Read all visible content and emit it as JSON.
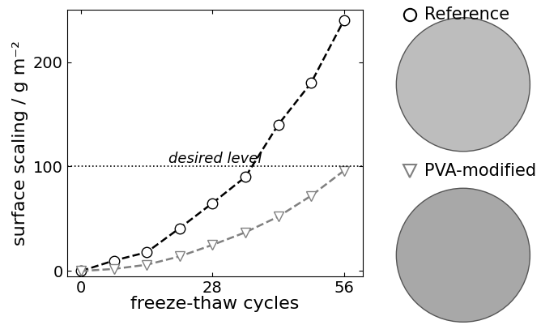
{
  "chart_data": {
    "type": "line",
    "x_label": "freeze-thaw cycles",
    "y_label": "surface scaling / g m⁻²",
    "x": [
      0,
      7,
      14,
      21,
      28,
      35,
      42,
      49,
      56
    ],
    "series": [
      {
        "name": "Reference",
        "color": "#000000",
        "marker": "circle",
        "line_style": "dashed",
        "values": [
          0,
          10,
          18,
          41,
          65,
          90,
          140,
          180,
          240
        ]
      },
      {
        "name": "PVA-modified",
        "color": "#808080",
        "marker": "triangle_down",
        "line_style": "dashed",
        "values": [
          0,
          2,
          6,
          14,
          25,
          37,
          52,
          72,
          96
        ]
      }
    ],
    "reference_line": {
      "value": 100,
      "label": "desired level"
    },
    "xlim": [
      -3,
      60
    ],
    "xticks": [
      0,
      28,
      56
    ],
    "ylim": [
      -5,
      250
    ],
    "yticks": [
      0,
      100,
      200
    ],
    "grid": false
  }
}
